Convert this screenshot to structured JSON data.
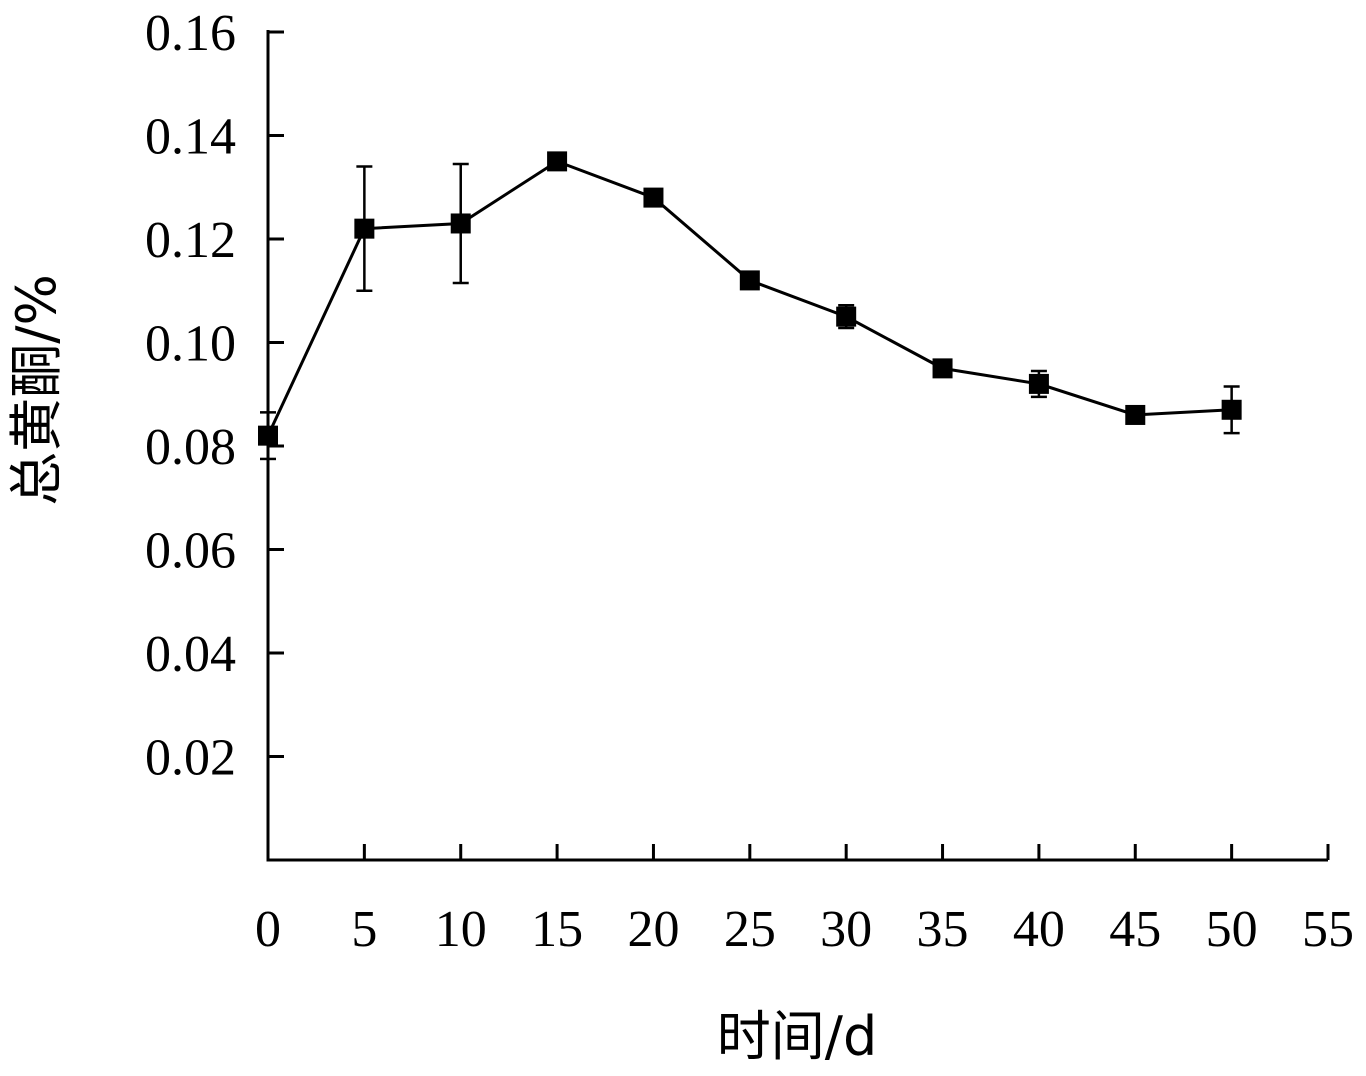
{
  "chart_data": {
    "type": "line",
    "xlabel": "时间/d",
    "ylabel": "总黄酮/%",
    "xlim": [
      0,
      55
    ],
    "ylim": [
      0,
      0.16
    ],
    "x_ticks": [
      "0",
      "5",
      "10",
      "15",
      "20",
      "25",
      "30",
      "35",
      "40",
      "45",
      "50",
      "55"
    ],
    "y_ticks": [
      "0.02",
      "0.04",
      "0.06",
      "0.08",
      "0.10",
      "0.12",
      "0.14",
      "0.16"
    ],
    "grid": false,
    "series": [
      {
        "x": [
          0,
          5,
          10,
          15,
          20,
          25,
          30,
          35,
          40,
          45,
          50
        ],
        "y": [
          0.082,
          0.122,
          0.123,
          0.135,
          0.128,
          0.112,
          0.105,
          0.095,
          0.092,
          0.086,
          0.087
        ],
        "error": [
          0.0045,
          0.012,
          0.0115,
          0.0005,
          0.0015,
          0.0008,
          0.0022,
          0.0008,
          0.0025,
          0.0006,
          0.0045
        ],
        "marker": "square",
        "color": "#000000"
      }
    ]
  }
}
